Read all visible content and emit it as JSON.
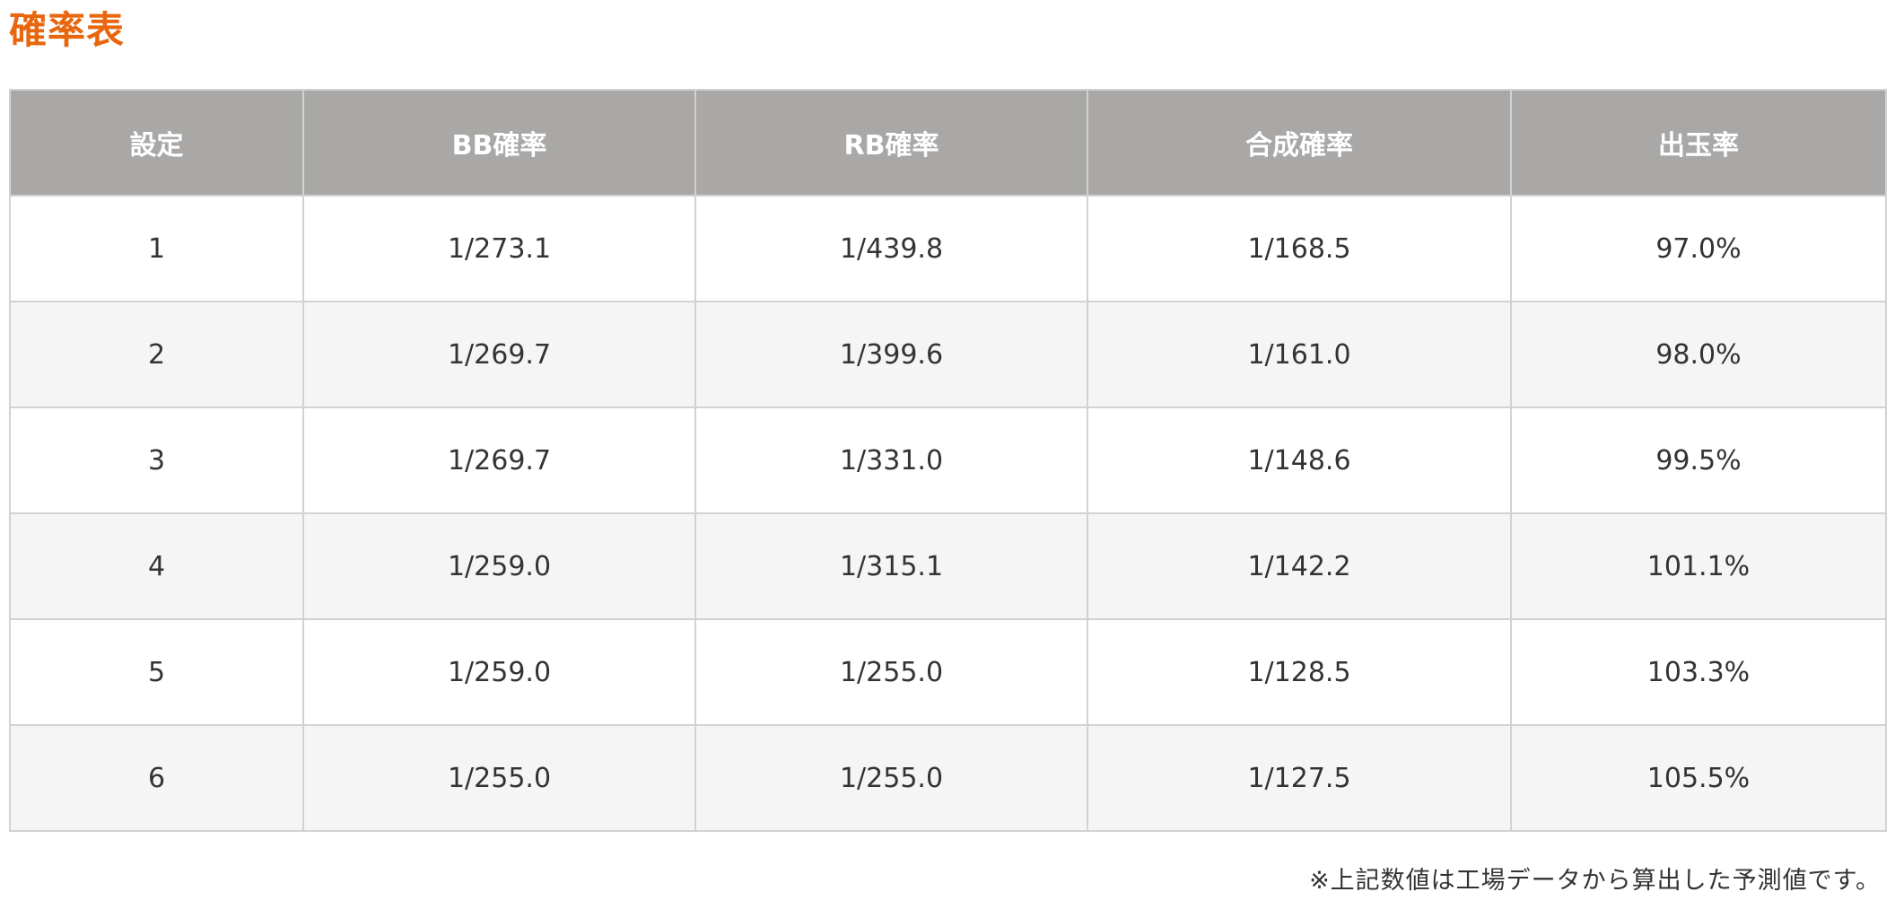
{
  "title": "確率表",
  "colors": {
    "title": "#e8660e",
    "header_bg": "#a9a8a6",
    "header_text": "#ffffff",
    "row_alt_bg": "#f5f5f5",
    "border": "#d2d2d2"
  },
  "table": {
    "headers": [
      "設定",
      "BB確率",
      "RB確率",
      "合成確率",
      "出玉率"
    ],
    "rows": [
      [
        "1",
        "1/273.1",
        "1/439.8",
        "1/168.5",
        "97.0%"
      ],
      [
        "2",
        "1/269.7",
        "1/399.6",
        "1/161.0",
        "98.0%"
      ],
      [
        "3",
        "1/269.7",
        "1/331.0",
        "1/148.6",
        "99.5%"
      ],
      [
        "4",
        "1/259.0",
        "1/315.1",
        "1/142.2",
        "101.1%"
      ],
      [
        "5",
        "1/259.0",
        "1/255.0",
        "1/128.5",
        "103.3%"
      ],
      [
        "6",
        "1/255.0",
        "1/255.0",
        "1/127.5",
        "105.5%"
      ]
    ]
  },
  "note": "※上記数値は工場データから算出した予測値です。"
}
